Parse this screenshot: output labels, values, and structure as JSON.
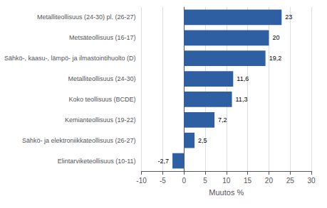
{
  "chart_data": {
    "type": "bar",
    "orientation": "horizontal",
    "categories": [
      "Elintarviketeollisuus (10-11)",
      "Sähkö- ja elektroniikkateollisuus (26-27)",
      "Kemianteollisuus (19-22)",
      "Koko teollisuus (BCDE)",
      "Metalliteollisuus (24-30)",
      "Sähkö-, kaasu-, lämpö- ja ilmastointihuolto (D)",
      "Metsäteollisuus (16-17)",
      "Metalliteollisuus (24-30) pl. (26-27)"
    ],
    "values": [
      -2.7,
      2.5,
      7.2,
      11.3,
      11.6,
      19.2,
      20.0,
      23.0
    ],
    "value_labels": [
      "-2,7",
      "2,5",
      "7,2",
      "11,3",
      "11,6",
      "19,2",
      "20",
      "23"
    ],
    "data_labels": true,
    "color": "#2E5FA3",
    "xlabel": "Muutos %",
    "xlim": [
      -10,
      30
    ],
    "xticks": [
      -10,
      -5,
      0,
      5,
      10,
      15,
      20,
      25,
      30
    ],
    "grid": true
  }
}
